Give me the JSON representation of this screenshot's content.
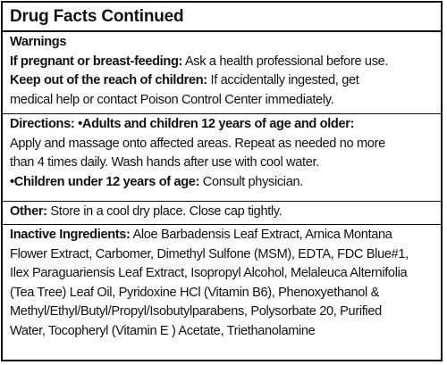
{
  "title": "Drug Facts Continued",
  "warnings": {
    "heading": "Warnings",
    "pregnant_label": "If pregnant or breast-feeding:",
    "pregnant_text": "Ask a health professional before use.",
    "children_label": "Keep out of the reach of children:",
    "children_text_1": "If accidentally ingested, get",
    "children_text_2": "medical help or contact Poison Control Center immediately."
  },
  "directions": {
    "heading": "Directions:",
    "bullet": "•",
    "adults_label": "Adults and children 12 years of age and older:",
    "adults_text_1": "Apply and massage onto affected areas. Repeat as needed no more",
    "adults_text_2": "than 4 times daily. Wash hands after use with cool water.",
    "under12_label": "Children under 12 years of age:",
    "under12_text": "Consult physician."
  },
  "other": {
    "heading": "Other:",
    "text": "Store in a cool dry place. Close cap tightly."
  },
  "inactive": {
    "heading": "Inactive Ingredients:",
    "line_1": "Aloe Barbadensis Leaf Extract, Arnica Montana",
    "line_2": "Flower Extract, Carbomer, Dimethyl Sulfone (MSM), EDTA, FDC Blue#1,",
    "line_3": "Ilex Paraguariensis Leaf Extract, Isopropyl Alcohol, Melaleuca Alternifolia",
    "line_4": "(Tea Tree) Leaf Oil, Pyridoxine HCl (Vitamin B6), Phenoxyethanol &",
    "line_5": "Methyl/Ethyl/Butyl/Propyl/Isobutylparabens, Polysorbate 20, Purified",
    "line_6": "Water, Tocopheryl (Vitamin E ) Acetate, Triethanolamine"
  }
}
